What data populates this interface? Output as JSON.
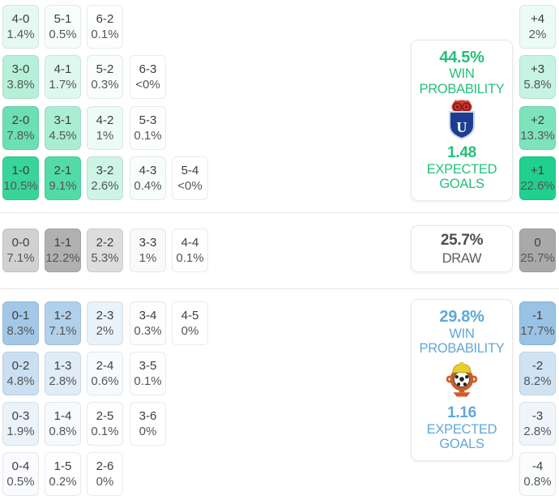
{
  "chart_data": {
    "type": "heatmap",
    "title": "",
    "home_win": {
      "win_probability_pct": 44.5,
      "expected_goals": 1.48,
      "scores": {
        "4-0": 1.4,
        "5-1": 0.5,
        "6-2": 0.1,
        "3-0": 3.8,
        "4-1": 1.7,
        "5-2": 0.3,
        "6-3": "<0",
        "2-0": 7.8,
        "3-1": 4.5,
        "4-2": 1,
        "5-3": 0.1,
        "1-0": 10.5,
        "2-1": 9.1,
        "3-2": 2.6,
        "4-3": 0.4,
        "5-4": "<0"
      },
      "goal_difference": {
        "+4": 2,
        "+3": 5.8,
        "+2": 13.3,
        "+1": 22.6
      }
    },
    "draw": {
      "probability_pct": 25.7,
      "scores": {
        "0-0": 7.1,
        "1-1": 12.2,
        "2-2": 5.3,
        "3-3": 1,
        "4-4": 0.1
      },
      "goal_difference": {
        "0": 25.7
      }
    },
    "away_win": {
      "win_probability_pct": 29.8,
      "expected_goals": 1.16,
      "scores": {
        "0-1": 8.3,
        "1-2": 7.1,
        "2-3": 2,
        "3-4": 0.3,
        "4-5": 0,
        "0-2": 4.8,
        "1-3": 2.8,
        "2-4": 0.6,
        "3-5": 0.1,
        "0-3": 1.9,
        "1-4": 0.8,
        "2-5": 0.1,
        "3-6": 0,
        "0-4": 0.5,
        "1-5": 0.2,
        "2-6": 0
      },
      "goal_difference": {
        "-1": 17.7,
        "-2": 8.2,
        "-3": 2.8,
        "-4": 0.8
      }
    }
  },
  "sections": {
    "home": {
      "accent": "#24c07a",
      "grid": [
        [
          {
            "score": "4-0",
            "pct": "1.4%",
            "color": "#e5f9f2"
          },
          {
            "score": "5-1",
            "pct": "0.5%",
            "color": "#f6fdfa"
          },
          {
            "score": "6-2",
            "pct": "0.1%",
            "color": "#fdfffe"
          }
        ],
        [
          {
            "score": "3-0",
            "pct": "3.8%",
            "color": "#b7f0da"
          },
          {
            "score": "4-1",
            "pct": "1.7%",
            "color": "#dff8ef"
          },
          {
            "score": "5-2",
            "pct": "0.3%",
            "color": "#f9fefc"
          },
          {
            "score": "6-3",
            "pct": "<0%",
            "color": "#ffffff"
          }
        ],
        [
          {
            "score": "2-0",
            "pct": "7.8%",
            "color": "#6cdfb4"
          },
          {
            "score": "3-1",
            "pct": "4.5%",
            "color": "#aaedd4"
          },
          {
            "score": "4-2",
            "pct": "1%",
            "color": "#ecfbf5"
          },
          {
            "score": "5-3",
            "pct": "0.1%",
            "color": "#fdfffe"
          }
        ],
        [
          {
            "score": "1-0",
            "pct": "10.5%",
            "color": "#39d49a"
          },
          {
            "score": "2-1",
            "pct": "9.1%",
            "color": "#53daa7"
          },
          {
            "score": "3-2",
            "pct": "2.6%",
            "color": "#cef4e6"
          },
          {
            "score": "4-3",
            "pct": "0.4%",
            "color": "#f7fdfb"
          },
          {
            "score": "5-4",
            "pct": "<0%",
            "color": "#ffffff"
          }
        ]
      ],
      "diff": [
        {
          "label": "+4",
          "pct": "2%",
          "color": "#ebfbf5"
        },
        {
          "label": "+3",
          "pct": "5.8%",
          "color": "#c6f3e2"
        },
        {
          "label": "+2",
          "pct": "13.3%",
          "color": "#7de3bd"
        },
        {
          "label": "+1",
          "pct": "22.6%",
          "color": "#21cf8e"
        }
      ],
      "card": {
        "win_pct": "44.5%",
        "win_label_1": "WIN",
        "win_label_2": "PROBABILITY",
        "xg": "1.48",
        "xg_label_1": "EXPECTED",
        "xg_label_2": "GOALS"
      }
    },
    "draw": {
      "accent": "#4d4d4d",
      "grid": [
        [
          {
            "score": "0-0",
            "pct": "7.1%",
            "color": "#d1d1d1"
          },
          {
            "score": "1-1",
            "pct": "12.2%",
            "color": "#b0b0b0"
          },
          {
            "score": "2-2",
            "pct": "5.3%",
            "color": "#dddddd"
          },
          {
            "score": "3-3",
            "pct": "1%",
            "color": "#f9f9f9"
          },
          {
            "score": "4-4",
            "pct": "0.1%",
            "color": "#fefefe"
          }
        ]
      ],
      "diff": [
        {
          "label": "0",
          "pct": "25.7%",
          "color": "#a9a9a9"
        }
      ],
      "card": {
        "pct": "25.7%",
        "label": "DRAW"
      }
    },
    "away": {
      "accent": "#5fa8d8",
      "grid": [
        [
          {
            "score": "0-1",
            "pct": "8.3%",
            "color": "#a3c8e7"
          },
          {
            "score": "1-2",
            "pct": "7.1%",
            "color": "#b1d0ea"
          },
          {
            "score": "2-3",
            "pct": "2%",
            "color": "#e9f2f9"
          },
          {
            "score": "3-4",
            "pct": "0.3%",
            "color": "#fcfdfe"
          },
          {
            "score": "4-5",
            "pct": "0%",
            "color": "#ffffff"
          }
        ],
        [
          {
            "score": "0-2",
            "pct": "4.8%",
            "color": "#cadff1"
          },
          {
            "score": "1-3",
            "pct": "2.8%",
            "color": "#e0ecf7"
          },
          {
            "score": "2-4",
            "pct": "0.6%",
            "color": "#f8fbfd"
          },
          {
            "score": "3-5",
            "pct": "0.1%",
            "color": "#fefeff"
          }
        ],
        [
          {
            "score": "0-3",
            "pct": "1.9%",
            "color": "#eaf2fa"
          },
          {
            "score": "1-4",
            "pct": "0.8%",
            "color": "#f6fafd"
          },
          {
            "score": "2-5",
            "pct": "0.1%",
            "color": "#fefeff"
          },
          {
            "score": "3-6",
            "pct": "0%",
            "color": "#ffffff"
          }
        ],
        [
          {
            "score": "0-4",
            "pct": "0.5%",
            "color": "#f9fbfe"
          },
          {
            "score": "1-5",
            "pct": "0.2%",
            "color": "#fdfefe"
          },
          {
            "score": "2-6",
            "pct": "0%",
            "color": "#ffffff"
          }
        ]
      ],
      "diff": [
        {
          "label": "-1",
          "pct": "17.7%",
          "color": "#9ac2e4"
        },
        {
          "label": "-2",
          "pct": "8.2%",
          "color": "#d0e3f3"
        },
        {
          "label": "-3",
          "pct": "2.8%",
          "color": "#eff5fb"
        },
        {
          "label": "-4",
          "pct": "0.8%",
          "color": "#fafcfe"
        }
      ],
      "card": {
        "win_pct": "29.8%",
        "win_label_1": "WIN",
        "win_label_2": "PROBABILITY",
        "xg": "1.16",
        "xg_label_1": "EXPECTED",
        "xg_label_2": "GOALS"
      }
    }
  }
}
